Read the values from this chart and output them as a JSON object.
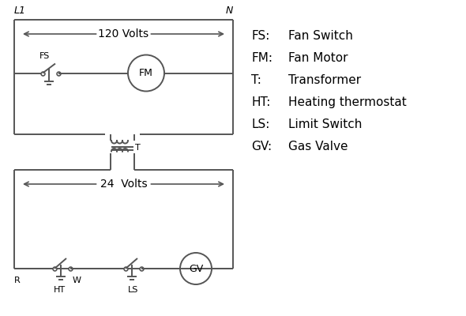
{
  "background_color": "#ffffff",
  "line_color": "#555555",
  "text_color": "#000000",
  "legend_items": [
    [
      "FS:",
      "Fan Switch"
    ],
    [
      "FM:",
      "Fan Motor"
    ],
    [
      "T:",
      "Transformer"
    ],
    [
      "HT:",
      "Heating thermostat"
    ],
    [
      "LS:",
      "Limit Switch"
    ],
    [
      "GV:",
      "Gas Valve"
    ]
  ],
  "L1_label": "L1",
  "N_label": "N",
  "volts120_label": "120 Volts",
  "volts24_label": "24  Volts",
  "T_label": "T",
  "R_label": "R",
  "W_label": "W",
  "FS_label": "FS",
  "FM_label": "FM",
  "HT_label": "HT",
  "LS_label": "LS",
  "GV_label": "GV"
}
